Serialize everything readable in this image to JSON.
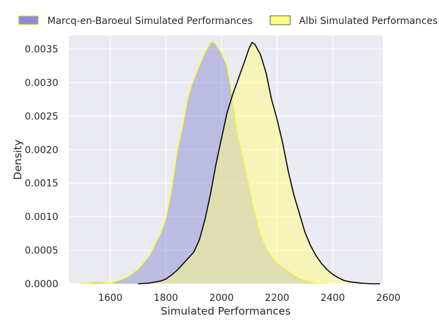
{
  "chart_data": {
    "type": "area",
    "title": "",
    "xlabel": "Simulated Performances",
    "ylabel": "Density",
    "xlim": [
      1450,
      2580
    ],
    "ylim": [
      0,
      0.0037
    ],
    "grid": true,
    "legend_position": "top",
    "x_ticks": [
      1600,
      1800,
      2000,
      2200,
      2400,
      2600
    ],
    "x_tick_labels": [
      "1600",
      "1800",
      "2000",
      "2200",
      "2400",
      "2600"
    ],
    "y_ticks": [
      0,
      0.0005,
      0.001,
      0.0015,
      0.002,
      0.0025,
      0.003,
      0.0035
    ],
    "y_tick_labels": [
      "0.0000",
      "0.0005",
      "0.0010",
      "0.0015",
      "0.0020",
      "0.0025",
      "0.0030",
      "0.0035"
    ],
    "series": [
      {
        "name": "Marcq-en-Baroeul Simulated Performances",
        "fill_color": "#8d8dd4",
        "edge_color": "#ffff22",
        "x": [
          1490,
          1530,
          1560,
          1600,
          1630,
          1660,
          1700,
          1740,
          1780,
          1800,
          1820,
          1840,
          1860,
          1880,
          1900,
          1920,
          1940,
          1960,
          1970,
          1980,
          1990,
          2000,
          2020,
          2040,
          2060,
          2080,
          2100,
          2120,
          2140,
          2160,
          2180,
          2200,
          2220,
          2240,
          2260,
          2280,
          2300,
          2320,
          2340,
          2360,
          2380
        ],
        "y": [
          0,
          2e-05,
          3e-05,
          1e-05,
          5e-05,
          0.0001,
          0.00022,
          0.00042,
          0.00075,
          0.00098,
          0.0014,
          0.00197,
          0.00236,
          0.0028,
          0.00306,
          0.00325,
          0.00345,
          0.0036,
          0.00361,
          0.00357,
          0.0035,
          0.00345,
          0.00325,
          0.00278,
          0.00222,
          0.00185,
          0.00148,
          0.00108,
          0.00075,
          0.00055,
          0.00042,
          0.00032,
          0.00026,
          0.0002,
          0.00014,
          9e-05,
          6e-05,
          4e-05,
          2e-05,
          1e-05,
          0
        ]
      },
      {
        "name": "Albi Simulated Performances",
        "fill_color": "#ffff80",
        "edge_color": "#000000",
        "x": [
          1700,
          1740,
          1780,
          1800,
          1820,
          1840,
          1860,
          1880,
          1900,
          1920,
          1940,
          1960,
          1980,
          2000,
          2020,
          2040,
          2060,
          2080,
          2100,
          2110,
          2120,
          2140,
          2160,
          2180,
          2200,
          2220,
          2240,
          2260,
          2280,
          2300,
          2320,
          2340,
          2360,
          2380,
          2400,
          2420,
          2440,
          2460,
          2500,
          2540,
          2570
        ],
        "y": [
          0,
          1e-05,
          4e-05,
          7e-05,
          0.00013,
          0.0002,
          0.00029,
          0.00038,
          0.00047,
          0.00065,
          0.00095,
          0.00133,
          0.00178,
          0.00217,
          0.00255,
          0.00282,
          0.00305,
          0.00328,
          0.00352,
          0.0036,
          0.00357,
          0.00342,
          0.00315,
          0.00275,
          0.00245,
          0.0021,
          0.00168,
          0.00133,
          0.00105,
          0.00077,
          0.00057,
          0.00042,
          0.0003,
          0.00021,
          0.00014,
          9e-05,
          5e-05,
          3e-05,
          1e-05,
          0,
          0
        ]
      }
    ]
  }
}
